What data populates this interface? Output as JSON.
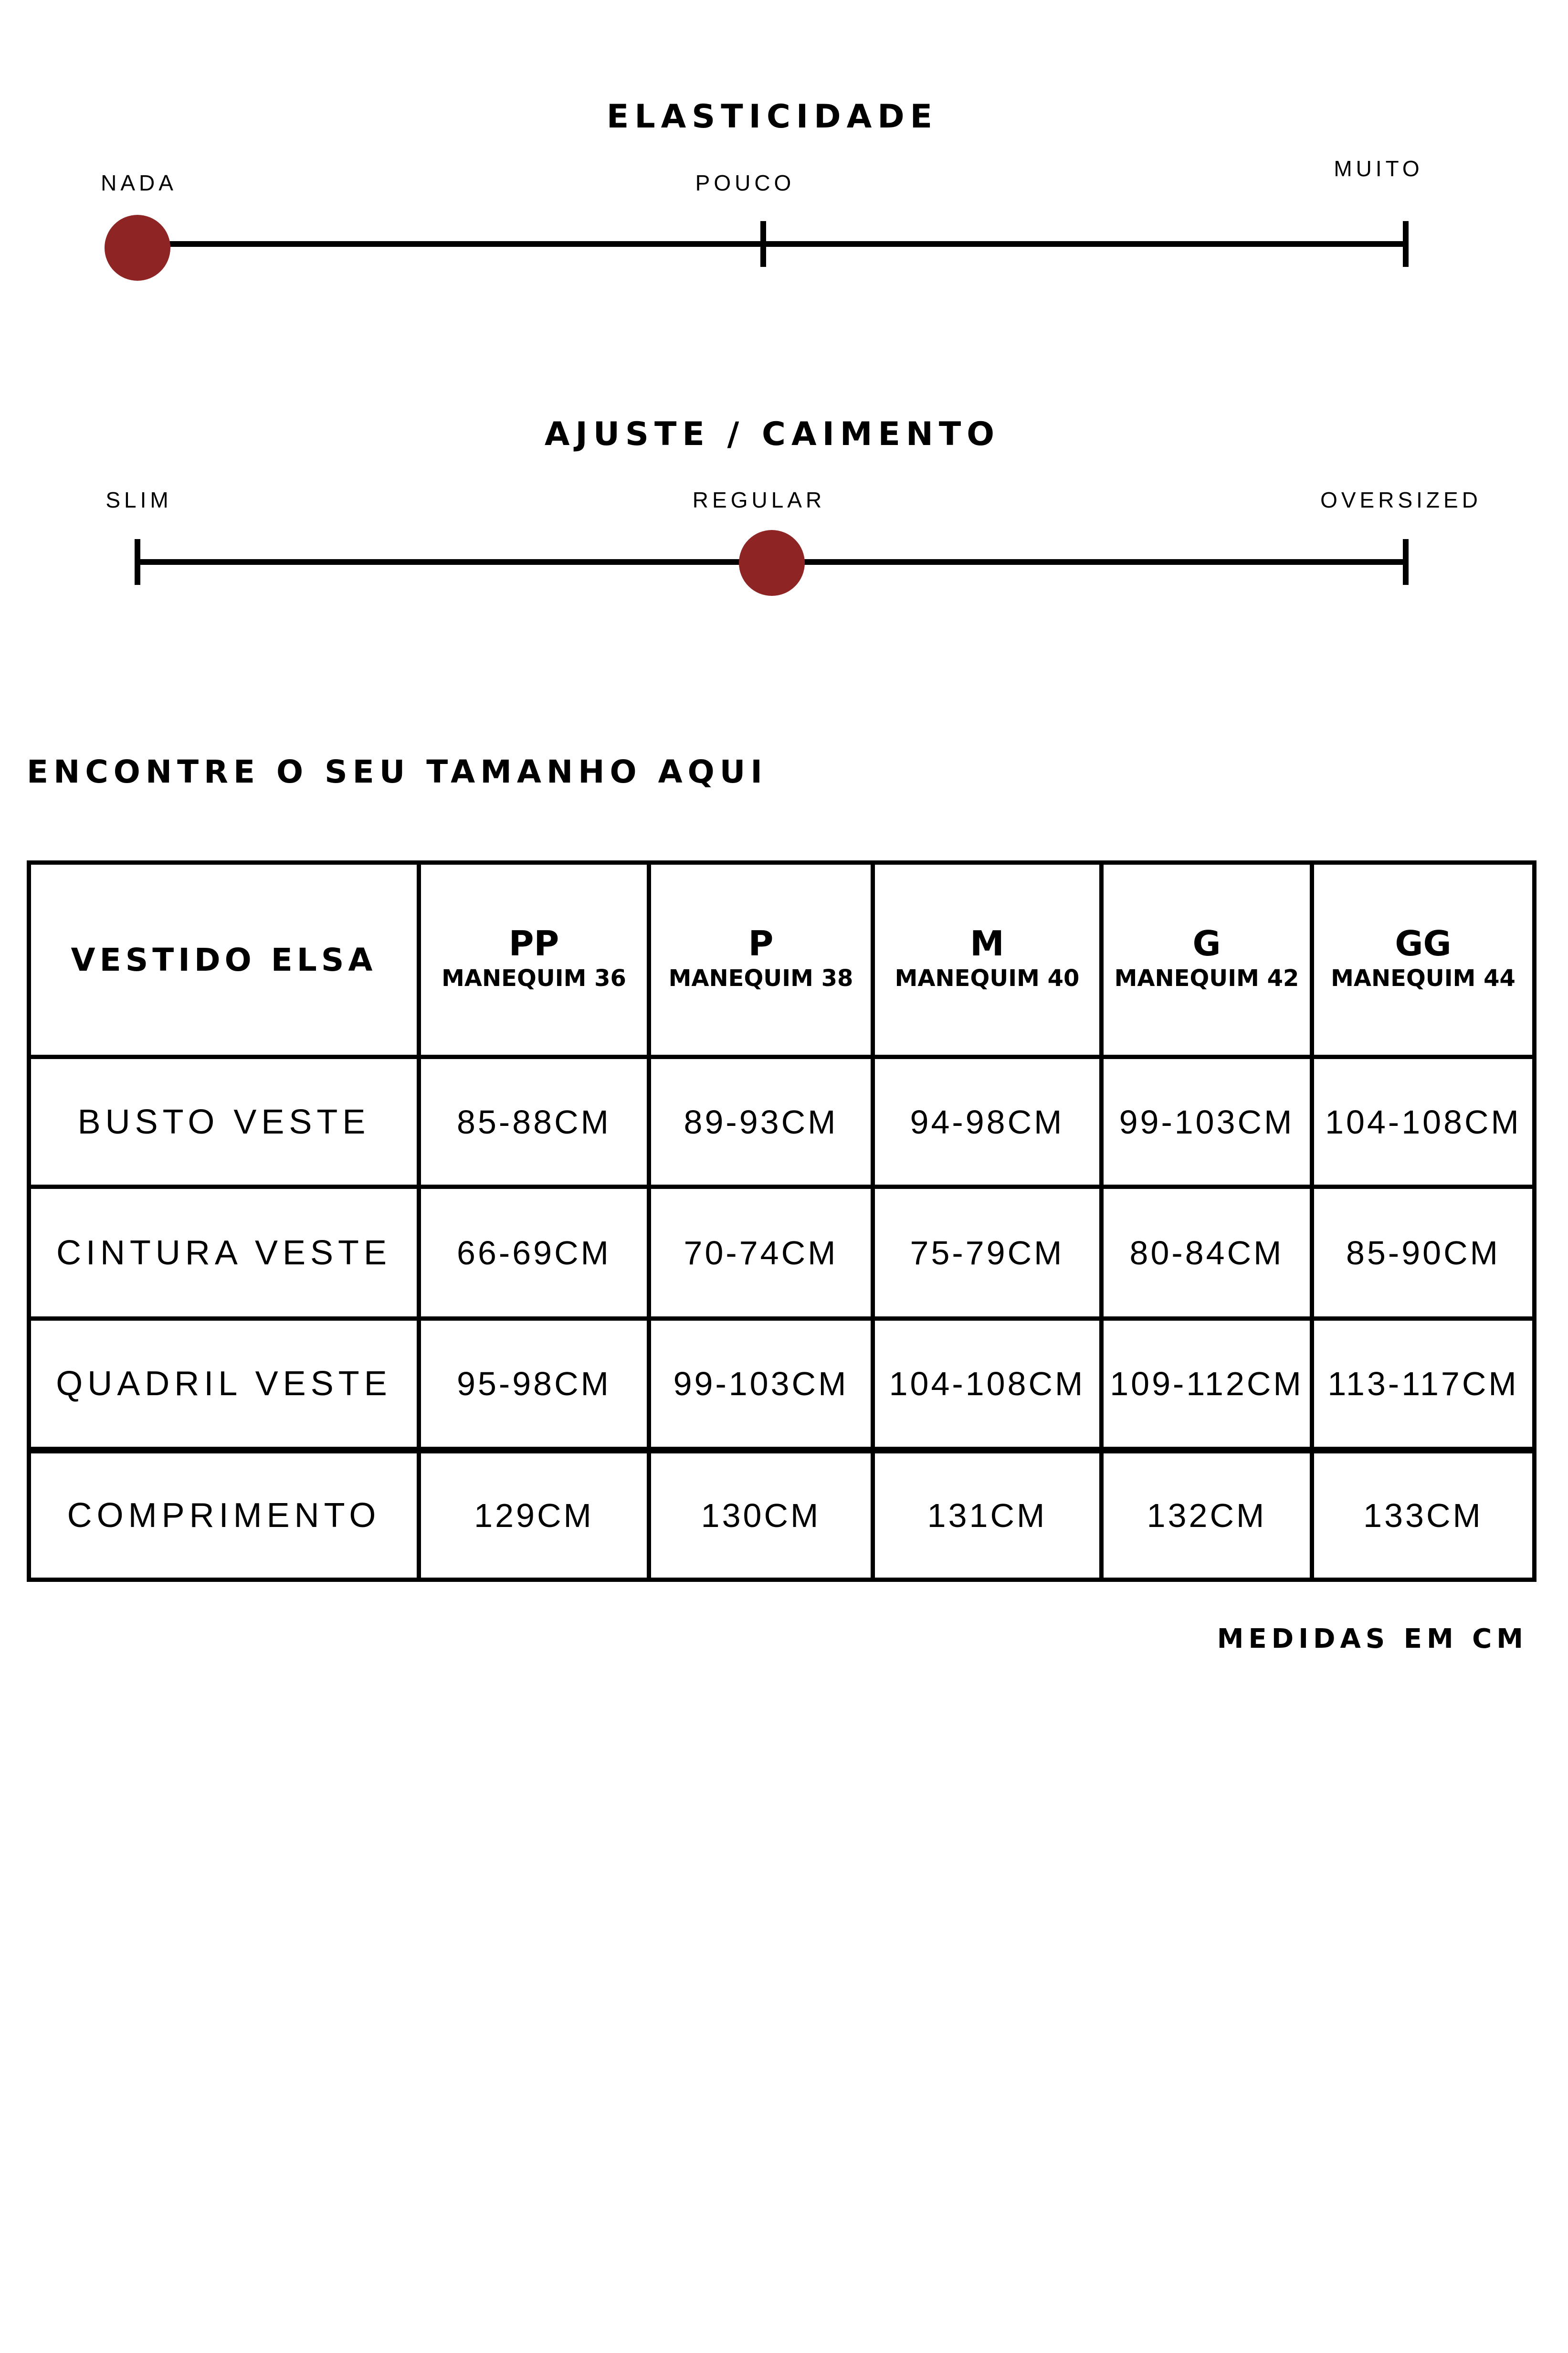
{
  "accent_color": "#8e2424",
  "elasticity": {
    "title": "ELASTICIDADE",
    "labels": [
      "NADA",
      "POUCO",
      "MUITO"
    ],
    "selected": "NADA",
    "value_fraction": 0
  },
  "fit": {
    "title": "AJUSTE / CAIMENTO",
    "labels": [
      "SLIM",
      "REGULAR",
      "OVERSIZED"
    ],
    "selected": "REGULAR",
    "value_fraction": 0.5
  },
  "size_table": {
    "heading": "ENCONTRE O SEU TAMANHO AQUI",
    "corner": "VESTIDO ELSA",
    "columns": [
      {
        "size": "PP",
        "mannequin": "MANEQUIM 36"
      },
      {
        "size": "P",
        "mannequin": "MANEQUIM 38"
      },
      {
        "size": "M",
        "mannequin": "MANEQUIM 40"
      },
      {
        "size": "G",
        "mannequin": "MANEQUIM 42"
      },
      {
        "size": "GG",
        "mannequin": "MANEQUIM 44"
      }
    ],
    "rows": [
      {
        "label": "BUSTO VESTE",
        "values": [
          "85-88CM",
          "89-93CM",
          "94-98CM",
          "99-103CM",
          "104-108CM"
        ]
      },
      {
        "label": "CINTURA VESTE",
        "values": [
          "66-69CM",
          "70-74CM",
          "75-79CM",
          "80-84CM",
          "85-90CM"
        ]
      },
      {
        "label": "QUADRIL VESTE",
        "values": [
          "95-98CM",
          "99-103CM",
          "104-108CM",
          "109-112CM",
          "113-117CM"
        ]
      },
      {
        "label": "COMPRIMENTO",
        "values": [
          "129CM",
          "130CM",
          "131CM",
          "132CM",
          "133CM"
        ]
      }
    ],
    "note": "MEDIDAS EM CM"
  }
}
